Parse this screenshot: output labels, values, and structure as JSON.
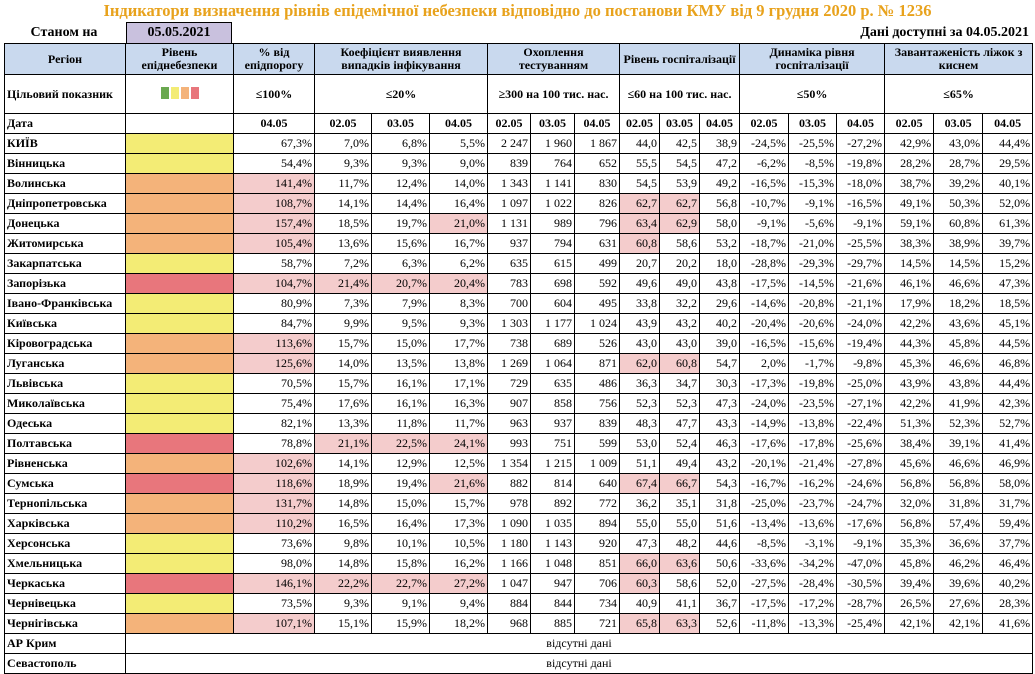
{
  "title": "Індикатори визначення рівнів епідемічної небезпеки відповідно до постанови КМУ від 9 грудня 2020 р. № 1236",
  "status_label": "Станом на",
  "status_date": "05.05.2021",
  "available_text": "Дані доступні за 04.05.2021",
  "columns": {
    "region": "Регіон",
    "level": "Рівень епіднебезпеки",
    "pct": "% від епідпорогу",
    "detect": "Коефіцієнт виявлення випадків інфікування",
    "testing": "Охоплення тестуванням",
    "hosp": "Рівень госпіталізації",
    "dyn": "Динаміка рівня госпіталізації",
    "beds": "Завантаженість ліжок з киснем"
  },
  "target": {
    "label": "Цільовий показник",
    "pct": "≤100%",
    "detect": "≤20%",
    "testing": "≥300 на 100 тис. нас.",
    "hosp": "≤60 на 100 тис. нас.",
    "dyn": "≤50%",
    "beds": "≤65%"
  },
  "level_swatches": [
    "#6AA84F",
    "#F3EC75",
    "#F4B37A",
    "#E8767C"
  ],
  "dates_label": "Дата",
  "dates": {
    "pct": [
      "04.05"
    ],
    "triple": [
      "02.05",
      "03.05",
      "04.05"
    ]
  },
  "colors": {
    "yellow": "#F3EC75",
    "orange": "#F4B37A",
    "red": "#E8767C",
    "highlight": "#F4CCCC",
    "header": "#C9D9EE",
    "title": "#E8A21C"
  },
  "missing_text": "відсутні дані",
  "missing_regions": [
    "АР Крим",
    "Севастополь"
  ],
  "rows": [
    {
      "name": "КИЇВ",
      "level": "yellow",
      "pct": "67,3%",
      "detect": [
        "7,0%",
        "6,8%",
        "5,5%"
      ],
      "testing": [
        "2 247",
        "1 960",
        "1 867"
      ],
      "hosp": [
        "44,0",
        "42,5",
        "38,9"
      ],
      "dyn": [
        "-24,5%",
        "-25,5%",
        "-27,2%"
      ],
      "beds": [
        "42,9%",
        "43,0%",
        "44,4%"
      ],
      "hl": []
    },
    {
      "name": "Вінницька",
      "level": "yellow",
      "pct": "54,4%",
      "detect": [
        "9,3%",
        "9,3%",
        "9,0%"
      ],
      "testing": [
        "839",
        "764",
        "652"
      ],
      "hosp": [
        "55,5",
        "54,5",
        "47,2"
      ],
      "dyn": [
        "-6,2%",
        "-8,5%",
        "-19,8%"
      ],
      "beds": [
        "28,2%",
        "28,7%",
        "29,5%"
      ],
      "hl": []
    },
    {
      "name": "Волинська",
      "level": "orange",
      "pct": "141,4%",
      "detect": [
        "11,7%",
        "12,4%",
        "14,0%"
      ],
      "testing": [
        "1 343",
        "1 141",
        "830"
      ],
      "hosp": [
        "54,5",
        "53,9",
        "49,2"
      ],
      "dyn": [
        "-16,5%",
        "-15,3%",
        "-18,0%"
      ],
      "beds": [
        "38,7%",
        "39,2%",
        "40,1%"
      ],
      "hl": [
        "pct"
      ]
    },
    {
      "name": "Дніпропетровська",
      "level": "orange",
      "pct": "108,7%",
      "detect": [
        "14,1%",
        "14,4%",
        "16,4%"
      ],
      "testing": [
        "1 097",
        "1 022",
        "826"
      ],
      "hosp": [
        "62,7",
        "62,7",
        "56,8"
      ],
      "dyn": [
        "-10,7%",
        "-9,1%",
        "-16,5%"
      ],
      "beds": [
        "49,1%",
        "50,3%",
        "52,0%"
      ],
      "hl": [
        "pct",
        "hosp0",
        "hosp1"
      ]
    },
    {
      "name": "Донецька",
      "level": "orange",
      "pct": "157,4%",
      "detect": [
        "18,5%",
        "19,7%",
        "21,0%"
      ],
      "testing": [
        "1 131",
        "989",
        "796"
      ],
      "hosp": [
        "63,4",
        "62,9",
        "58,0"
      ],
      "dyn": [
        "-9,1%",
        "-5,6%",
        "-9,1%"
      ],
      "beds": [
        "59,1%",
        "60,8%",
        "61,3%"
      ],
      "hl": [
        "pct",
        "detect2",
        "hosp0",
        "hosp1"
      ]
    },
    {
      "name": "Житомирська",
      "level": "orange",
      "pct": "105,4%",
      "detect": [
        "13,6%",
        "15,6%",
        "16,7%"
      ],
      "testing": [
        "937",
        "794",
        "631"
      ],
      "hosp": [
        "60,8",
        "58,6",
        "53,2"
      ],
      "dyn": [
        "-18,7%",
        "-21,0%",
        "-25,5%"
      ],
      "beds": [
        "38,3%",
        "38,9%",
        "39,7%"
      ],
      "hl": [
        "pct",
        "hosp0"
      ]
    },
    {
      "name": "Закарпатська",
      "level": "yellow",
      "pct": "58,7%",
      "detect": [
        "7,2%",
        "6,3%",
        "6,2%"
      ],
      "testing": [
        "635",
        "615",
        "499"
      ],
      "hosp": [
        "20,7",
        "20,2",
        "18,0"
      ],
      "dyn": [
        "-28,8%",
        "-29,3%",
        "-29,7%"
      ],
      "beds": [
        "14,5%",
        "14,5%",
        "15,2%"
      ],
      "hl": []
    },
    {
      "name": "Запорізька",
      "level": "red",
      "pct": "104,7%",
      "detect": [
        "21,4%",
        "20,7%",
        "20,4%"
      ],
      "testing": [
        "783",
        "698",
        "592"
      ],
      "hosp": [
        "49,6",
        "49,0",
        "43,8"
      ],
      "dyn": [
        "-17,5%",
        "-14,5%",
        "-21,6%"
      ],
      "beds": [
        "46,1%",
        "46,6%",
        "47,3%"
      ],
      "hl": [
        "pct",
        "detect0",
        "detect1",
        "detect2"
      ]
    },
    {
      "name": "Івано-Франківська",
      "level": "yellow",
      "pct": "80,9%",
      "detect": [
        "7,3%",
        "7,9%",
        "8,3%"
      ],
      "testing": [
        "700",
        "604",
        "495"
      ],
      "hosp": [
        "33,8",
        "32,2",
        "29,6"
      ],
      "dyn": [
        "-14,6%",
        "-20,8%",
        "-21,1%"
      ],
      "beds": [
        "17,9%",
        "18,2%",
        "18,5%"
      ],
      "hl": []
    },
    {
      "name": "Київська",
      "level": "yellow",
      "pct": "84,7%",
      "detect": [
        "9,9%",
        "9,5%",
        "9,3%"
      ],
      "testing": [
        "1 303",
        "1 177",
        "1 024"
      ],
      "hosp": [
        "43,9",
        "43,2",
        "40,2"
      ],
      "dyn": [
        "-20,4%",
        "-20,6%",
        "-24,0%"
      ],
      "beds": [
        "42,2%",
        "43,6%",
        "45,1%"
      ],
      "hl": []
    },
    {
      "name": "Кіровоградська",
      "level": "orange",
      "pct": "113,6%",
      "detect": [
        "15,7%",
        "15,0%",
        "17,7%"
      ],
      "testing": [
        "738",
        "689",
        "526"
      ],
      "hosp": [
        "43,0",
        "43,0",
        "39,0"
      ],
      "dyn": [
        "-16,5%",
        "-15,6%",
        "-19,4%"
      ],
      "beds": [
        "44,3%",
        "45,8%",
        "44,5%"
      ],
      "hl": [
        "pct"
      ]
    },
    {
      "name": "Луганська",
      "level": "orange",
      "pct": "125,6%",
      "detect": [
        "14,0%",
        "13,5%",
        "13,8%"
      ],
      "testing": [
        "1 269",
        "1 064",
        "871"
      ],
      "hosp": [
        "62,0",
        "60,8",
        "54,7"
      ],
      "dyn": [
        "2,0%",
        "-1,7%",
        "-9,8%"
      ],
      "beds": [
        "45,3%",
        "46,6%",
        "46,8%"
      ],
      "hl": [
        "pct",
        "hosp0",
        "hosp1"
      ]
    },
    {
      "name": "Львівська",
      "level": "yellow",
      "pct": "70,5%",
      "detect": [
        "15,7%",
        "16,1%",
        "17,1%"
      ],
      "testing": [
        "729",
        "635",
        "486"
      ],
      "hosp": [
        "36,3",
        "34,7",
        "30,3"
      ],
      "dyn": [
        "-17,3%",
        "-19,8%",
        "-25,0%"
      ],
      "beds": [
        "43,9%",
        "43,8%",
        "44,4%"
      ],
      "hl": []
    },
    {
      "name": "Миколаївська",
      "level": "yellow",
      "pct": "75,4%",
      "detect": [
        "17,6%",
        "16,1%",
        "16,3%"
      ],
      "testing": [
        "907",
        "858",
        "756"
      ],
      "hosp": [
        "52,3",
        "52,3",
        "47,3"
      ],
      "dyn": [
        "-24,0%",
        "-23,5%",
        "-27,1%"
      ],
      "beds": [
        "42,2%",
        "41,9%",
        "42,3%"
      ],
      "hl": []
    },
    {
      "name": "Одеська",
      "level": "yellow",
      "pct": "82,1%",
      "detect": [
        "13,3%",
        "11,8%",
        "11,7%"
      ],
      "testing": [
        "963",
        "937",
        "839"
      ],
      "hosp": [
        "48,3",
        "47,7",
        "43,3"
      ],
      "dyn": [
        "-14,9%",
        "-13,8%",
        "-22,4%"
      ],
      "beds": [
        "51,3%",
        "52,3%",
        "52,7%"
      ],
      "hl": []
    },
    {
      "name": "Полтавська",
      "level": "red",
      "pct": "78,8%",
      "detect": [
        "21,1%",
        "22,5%",
        "24,1%"
      ],
      "testing": [
        "993",
        "751",
        "599"
      ],
      "hosp": [
        "53,0",
        "52,4",
        "46,3"
      ],
      "dyn": [
        "-17,6%",
        "-17,8%",
        "-25,6%"
      ],
      "beds": [
        "38,4%",
        "39,1%",
        "41,4%"
      ],
      "hl": [
        "detect0",
        "detect1",
        "detect2"
      ]
    },
    {
      "name": "Рівненська",
      "level": "orange",
      "pct": "102,6%",
      "detect": [
        "14,1%",
        "12,9%",
        "12,5%"
      ],
      "testing": [
        "1 354",
        "1 215",
        "1 009"
      ],
      "hosp": [
        "51,1",
        "49,4",
        "43,2"
      ],
      "dyn": [
        "-20,1%",
        "-21,4%",
        "-27,8%"
      ],
      "beds": [
        "45,6%",
        "46,6%",
        "46,9%"
      ],
      "hl": [
        "pct"
      ]
    },
    {
      "name": "Сумська",
      "level": "red",
      "pct": "118,6%",
      "detect": [
        "18,9%",
        "19,4%",
        "21,6%"
      ],
      "testing": [
        "882",
        "814",
        "640"
      ],
      "hosp": [
        "67,4",
        "66,7",
        "54,3"
      ],
      "dyn": [
        "-16,7%",
        "-16,2%",
        "-24,6%"
      ],
      "beds": [
        "56,8%",
        "56,8%",
        "58,0%"
      ],
      "hl": [
        "pct",
        "detect2",
        "hosp0",
        "hosp1"
      ]
    },
    {
      "name": "Тернопільська",
      "level": "orange",
      "pct": "131,7%",
      "detect": [
        "14,8%",
        "15,0%",
        "15,7%"
      ],
      "testing": [
        "978",
        "892",
        "772"
      ],
      "hosp": [
        "36,2",
        "35,1",
        "31,8"
      ],
      "dyn": [
        "-25,0%",
        "-23,7%",
        "-24,7%"
      ],
      "beds": [
        "32,0%",
        "31,8%",
        "31,7%"
      ],
      "hl": [
        "pct"
      ]
    },
    {
      "name": "Харківська",
      "level": "orange",
      "pct": "110,2%",
      "detect": [
        "16,5%",
        "16,4%",
        "17,3%"
      ],
      "testing": [
        "1 090",
        "1 035",
        "894"
      ],
      "hosp": [
        "55,0",
        "55,0",
        "51,6"
      ],
      "dyn": [
        "-13,4%",
        "-13,6%",
        "-17,6%"
      ],
      "beds": [
        "56,8%",
        "57,4%",
        "59,4%"
      ],
      "hl": [
        "pct"
      ]
    },
    {
      "name": "Херсонська",
      "level": "yellow",
      "pct": "73,6%",
      "detect": [
        "9,8%",
        "10,1%",
        "10,5%"
      ],
      "testing": [
        "1 180",
        "1 143",
        "920"
      ],
      "hosp": [
        "47,3",
        "48,2",
        "44,6"
      ],
      "dyn": [
        "-8,5%",
        "-3,1%",
        "-9,1%"
      ],
      "beds": [
        "35,3%",
        "36,6%",
        "37,7%"
      ],
      "hl": []
    },
    {
      "name": "Хмельницька",
      "level": "yellow",
      "pct": "98,0%",
      "detect": [
        "14,8%",
        "15,8%",
        "16,2%"
      ],
      "testing": [
        "1 166",
        "1 048",
        "851"
      ],
      "hosp": [
        "66,0",
        "63,6",
        "50,6"
      ],
      "dyn": [
        "-33,6%",
        "-34,2%",
        "-47,0%"
      ],
      "beds": [
        "45,8%",
        "46,2%",
        "46,4%"
      ],
      "hl": [
        "hosp0",
        "hosp1"
      ]
    },
    {
      "name": "Черкаська",
      "level": "red",
      "pct": "146,1%",
      "detect": [
        "22,2%",
        "22,7%",
        "27,2%"
      ],
      "testing": [
        "1 047",
        "947",
        "706"
      ],
      "hosp": [
        "60,3",
        "58,6",
        "52,0"
      ],
      "dyn": [
        "-27,5%",
        "-28,4%",
        "-30,5%"
      ],
      "beds": [
        "39,4%",
        "39,6%",
        "40,2%"
      ],
      "hl": [
        "pct",
        "detect0",
        "detect1",
        "detect2",
        "hosp0"
      ]
    },
    {
      "name": "Чернівецька",
      "level": "yellow",
      "pct": "73,5%",
      "detect": [
        "9,3%",
        "9,1%",
        "9,4%"
      ],
      "testing": [
        "884",
        "844",
        "734"
      ],
      "hosp": [
        "40,9",
        "41,1",
        "36,7"
      ],
      "dyn": [
        "-17,5%",
        "-17,2%",
        "-28,7%"
      ],
      "beds": [
        "26,5%",
        "27,6%",
        "28,3%"
      ],
      "hl": []
    },
    {
      "name": "Чернігівська",
      "level": "orange",
      "pct": "107,1%",
      "detect": [
        "15,1%",
        "15,9%",
        "18,2%"
      ],
      "testing": [
        "968",
        "885",
        "721"
      ],
      "hosp": [
        "65,8",
        "63,3",
        "52,6"
      ],
      "dyn": [
        "-11,8%",
        "-13,3%",
        "-25,4%"
      ],
      "beds": [
        "42,1%",
        "42,1%",
        "41,6%"
      ],
      "hl": [
        "pct",
        "hosp0",
        "hosp1"
      ]
    }
  ]
}
